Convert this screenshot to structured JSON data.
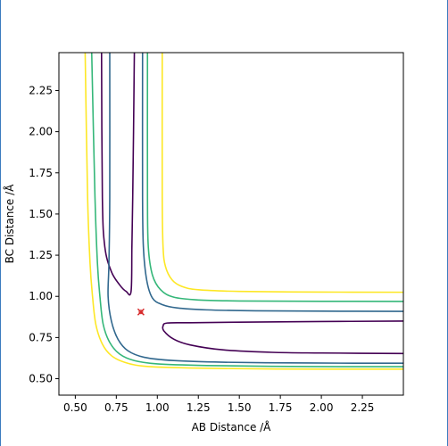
{
  "chart_data": {
    "type": "contour",
    "title": "",
    "xlabel": "AB Distance /Å",
    "ylabel": "BC Distance /Å",
    "xlim": [
      0.4,
      2.5
    ],
    "ylim": [
      0.4,
      2.48
    ],
    "xticks": [
      "0.50",
      "0.75",
      "1.00",
      "1.25",
      "1.50",
      "1.75",
      "2.00",
      "2.25"
    ],
    "yticks": [
      "0.50",
      "0.75",
      "1.00",
      "1.25",
      "1.50",
      "1.75",
      "2.00",
      "2.25"
    ],
    "grid": false,
    "legend": "none",
    "contour_levels": [
      {
        "color": "#440154",
        "paths": [
          [
            [
              0.66,
              2.48
            ],
            [
              0.665,
              1.6
            ],
            [
              0.68,
              1.3
            ],
            [
              0.72,
              1.15
            ],
            [
              0.77,
              1.07
            ],
            [
              0.81,
              1.03
            ],
            [
              0.84,
              1.03
            ],
            [
              0.845,
              1.3
            ],
            [
              0.85,
              1.6
            ],
            [
              0.855,
              2.0
            ],
            [
              0.86,
              2.48
            ]
          ],
          [
            [
              2.5,
              0.85
            ],
            [
              2.0,
              0.847
            ],
            [
              1.5,
              0.843
            ],
            [
              1.2,
              0.84
            ],
            [
              1.06,
              0.838
            ],
            [
              1.035,
              0.82
            ],
            [
              1.04,
              0.79
            ],
            [
              1.1,
              0.74
            ],
            [
              1.2,
              0.705
            ],
            [
              1.4,
              0.675
            ],
            [
              1.7,
              0.66
            ],
            [
              2.0,
              0.656
            ],
            [
              2.5,
              0.653
            ]
          ]
        ]
      },
      {
        "color": "#31688e",
        "paths": [
          [
            [
              0.91,
              2.48
            ],
            [
              0.91,
              1.6
            ],
            [
              0.915,
              1.3
            ],
            [
              0.935,
              1.1
            ],
            [
              0.97,
              0.99
            ],
            [
              1.03,
              0.95
            ],
            [
              1.12,
              0.93
            ],
            [
              1.3,
              0.918
            ],
            [
              1.6,
              0.912
            ],
            [
              2.0,
              0.91
            ],
            [
              2.5,
              0.909
            ]
          ],
          [
            [
              0.71,
              2.48
            ],
            [
              0.71,
              1.6
            ],
            [
              0.705,
              1.2
            ],
            [
              0.7,
              1.0
            ],
            [
              0.72,
              0.85
            ],
            [
              0.76,
              0.74
            ],
            [
              0.82,
              0.67
            ],
            [
              0.92,
              0.63
            ],
            [
              1.1,
              0.61
            ],
            [
              1.4,
              0.6
            ],
            [
              1.8,
              0.596
            ],
            [
              2.2,
              0.594
            ],
            [
              2.5,
              0.594
            ]
          ]
        ]
      },
      {
        "color": "#35b779",
        "paths": [
          [
            [
              0.94,
              2.48
            ],
            [
              0.94,
              1.6
            ],
            [
              0.945,
              1.3
            ],
            [
              0.97,
              1.13
            ],
            [
              1.02,
              1.04
            ],
            [
              1.1,
              0.995
            ],
            [
              1.25,
              0.978
            ],
            [
              1.5,
              0.972
            ],
            [
              2.0,
              0.97
            ],
            [
              2.5,
              0.969
            ]
          ],
          [
            [
              0.6,
              2.48
            ],
            [
              0.62,
              1.6
            ],
            [
              0.635,
              1.2
            ],
            [
              0.65,
              1.0
            ],
            [
              0.67,
              0.83
            ],
            [
              0.71,
              0.72
            ],
            [
              0.77,
              0.65
            ],
            [
              0.86,
              0.61
            ],
            [
              1.0,
              0.59
            ],
            [
              1.3,
              0.58
            ],
            [
              1.7,
              0.575
            ],
            [
              2.2,
              0.573
            ],
            [
              2.5,
              0.573
            ]
          ]
        ]
      },
      {
        "color": "#fde725",
        "paths": [
          [
            [
              1.03,
              2.48
            ],
            [
              1.03,
              1.6
            ],
            [
              1.035,
              1.3
            ],
            [
              1.05,
              1.18
            ],
            [
              1.09,
              1.1
            ],
            [
              1.15,
              1.06
            ],
            [
              1.25,
              1.04
            ],
            [
              1.5,
              1.03
            ],
            [
              2.0,
              1.026
            ],
            [
              2.5,
              1.025
            ]
          ],
          [
            [
              0.56,
              2.48
            ],
            [
              0.575,
              1.6
            ],
            [
              0.59,
              1.2
            ],
            [
              0.605,
              1.0
            ],
            [
              0.625,
              0.83
            ],
            [
              0.665,
              0.71
            ],
            [
              0.72,
              0.64
            ],
            [
              0.8,
              0.6
            ],
            [
              0.93,
              0.575
            ],
            [
              1.2,
              0.565
            ],
            [
              1.6,
              0.56
            ],
            [
              2.0,
              0.558
            ],
            [
              2.5,
              0.558
            ]
          ]
        ]
      }
    ],
    "markers": [
      {
        "x": 0.9,
        "y": 0.905,
        "color": "#d62728",
        "symbol": "x"
      }
    ]
  }
}
